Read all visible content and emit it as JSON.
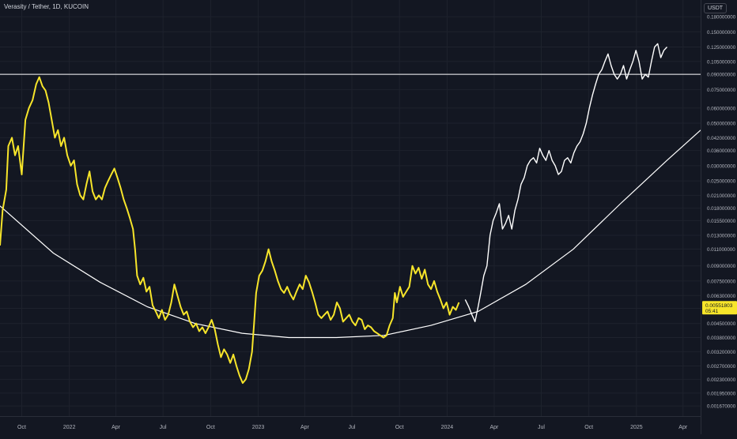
{
  "header": {
    "symbol_title": "Verasity / Tether, 1D, KUCOIN",
    "currency_label": "USDT"
  },
  "colors": {
    "background": "#131722",
    "grid": "#1e222d",
    "axis_text": "#b2b5be",
    "yellow_series": "#f7e52a",
    "white_series": "#ffffff",
    "overlay_line": "#ffffff",
    "price_tag_bg": "#f7e52a",
    "price_tag_text": "#131722"
  },
  "price_tag": {
    "price": "0.00551803",
    "countdown": "05:41"
  },
  "chart_data": {
    "type": "line",
    "y_scale": "log",
    "ylim": [
      0.00155,
      0.2
    ],
    "xlim": [
      "2021-08-20",
      "2025-05-05"
    ],
    "grid": true,
    "y_ticks": [
      "0.180000000",
      "0.150000000",
      "0.125000000",
      "0.105000000",
      "0.090000000",
      "0.075000000",
      "0.060000000",
      "0.050000000",
      "0.042000000",
      "0.036000000",
      "0.030000000",
      "0.025000000",
      "0.021000000",
      "0.018000000",
      "0.015500000",
      "0.013000000",
      "0.011000000",
      "0.009000000",
      "0.007500000",
      "0.006300000",
      "0.005400000",
      "0.004500000",
      "0.003800000",
      "0.003200000",
      "0.002700000",
      "0.002300000",
      "0.001950000",
      "0.001670000"
    ],
    "x_ticks": [
      {
        "label": "Oct",
        "date": "2021-10-01"
      },
      {
        "label": "2022",
        "date": "2022-01-01"
      },
      {
        "label": "Apr",
        "date": "2022-04-01"
      },
      {
        "label": "Jul",
        "date": "2022-07-01"
      },
      {
        "label": "Oct",
        "date": "2022-10-01"
      },
      {
        "label": "2023",
        "date": "2023-01-01"
      },
      {
        "label": "Apr",
        "date": "2023-04-01"
      },
      {
        "label": "Jul",
        "date": "2023-07-01"
      },
      {
        "label": "Oct",
        "date": "2023-10-01"
      },
      {
        "label": "2024",
        "date": "2024-01-01"
      },
      {
        "label": "Apr",
        "date": "2024-04-01"
      },
      {
        "label": "Jul",
        "date": "2024-07-01"
      },
      {
        "label": "Oct",
        "date": "2024-10-01"
      },
      {
        "label": "2025",
        "date": "2025-01-01"
      },
      {
        "label": "Apr",
        "date": "2025-04-01"
      }
    ],
    "series": [
      {
        "color": "#f7e52a",
        "points": [
          [
            "2021-08-20",
            0.0115
          ],
          [
            "2021-08-25",
            0.0175
          ],
          [
            "2021-09-01",
            0.0225
          ],
          [
            "2021-09-05",
            0.038
          ],
          [
            "2021-09-12",
            0.042
          ],
          [
            "2021-09-18",
            0.034
          ],
          [
            "2021-09-24",
            0.038
          ],
          [
            "2021-10-01",
            0.027
          ],
          [
            "2021-10-08",
            0.052
          ],
          [
            "2021-10-15",
            0.06
          ],
          [
            "2021-10-22",
            0.066
          ],
          [
            "2021-10-29",
            0.08
          ],
          [
            "2021-11-04",
            0.087
          ],
          [
            "2021-11-10",
            0.078
          ],
          [
            "2021-11-16",
            0.074
          ],
          [
            "2021-11-22",
            0.064
          ],
          [
            "2021-11-28",
            0.052
          ],
          [
            "2021-12-04",
            0.042
          ],
          [
            "2021-12-10",
            0.046
          ],
          [
            "2021-12-16",
            0.038
          ],
          [
            "2021-12-22",
            0.042
          ],
          [
            "2021-12-28",
            0.034
          ],
          [
            "2022-01-04",
            0.03
          ],
          [
            "2022-01-10",
            0.032
          ],
          [
            "2022-01-16",
            0.024
          ],
          [
            "2022-01-22",
            0.021
          ],
          [
            "2022-01-28",
            0.02
          ],
          [
            "2022-02-03",
            0.024
          ],
          [
            "2022-02-09",
            0.028
          ],
          [
            "2022-02-15",
            0.022
          ],
          [
            "2022-02-21",
            0.02
          ],
          [
            "2022-02-27",
            0.021
          ],
          [
            "2022-03-05",
            0.02
          ],
          [
            "2022-03-11",
            0.023
          ],
          [
            "2022-03-17",
            0.025
          ],
          [
            "2022-03-23",
            0.027
          ],
          [
            "2022-03-29",
            0.029
          ],
          [
            "2022-04-04",
            0.026
          ],
          [
            "2022-04-10",
            0.023
          ],
          [
            "2022-04-16",
            0.02
          ],
          [
            "2022-04-22",
            0.018
          ],
          [
            "2022-04-28",
            0.016
          ],
          [
            "2022-05-04",
            0.014
          ],
          [
            "2022-05-08",
            0.011
          ],
          [
            "2022-05-12",
            0.008
          ],
          [
            "2022-05-18",
            0.0072
          ],
          [
            "2022-05-24",
            0.0078
          ],
          [
            "2022-05-30",
            0.0066
          ],
          [
            "2022-06-05",
            0.007
          ],
          [
            "2022-06-11",
            0.0056
          ],
          [
            "2022-06-17",
            0.0052
          ],
          [
            "2022-06-23",
            0.0048
          ],
          [
            "2022-06-29",
            0.0053
          ],
          [
            "2022-07-05",
            0.0047
          ],
          [
            "2022-07-11",
            0.005
          ],
          [
            "2022-07-17",
            0.0058
          ],
          [
            "2022-07-23",
            0.0072
          ],
          [
            "2022-07-29",
            0.0063
          ],
          [
            "2022-08-04",
            0.0055
          ],
          [
            "2022-08-10",
            0.005
          ],
          [
            "2022-08-16",
            0.0052
          ],
          [
            "2022-08-22",
            0.0046
          ],
          [
            "2022-08-28",
            0.0043
          ],
          [
            "2022-09-03",
            0.0045
          ],
          [
            "2022-09-09",
            0.0041
          ],
          [
            "2022-09-15",
            0.0043
          ],
          [
            "2022-09-21",
            0.004
          ],
          [
            "2022-09-27",
            0.0043
          ],
          [
            "2022-10-03",
            0.0047
          ],
          [
            "2022-10-09",
            0.0042
          ],
          [
            "2022-10-15",
            0.0035
          ],
          [
            "2022-10-21",
            0.003
          ],
          [
            "2022-10-27",
            0.0033
          ],
          [
            "2022-11-02",
            0.0031
          ],
          [
            "2022-11-08",
            0.0028
          ],
          [
            "2022-11-14",
            0.0031
          ],
          [
            "2022-11-20",
            0.0027
          ],
          [
            "2022-11-26",
            0.0024
          ],
          [
            "2022-12-02",
            0.0022
          ],
          [
            "2022-12-08",
            0.0023
          ],
          [
            "2022-12-14",
            0.0026
          ],
          [
            "2022-12-20",
            0.0032
          ],
          [
            "2022-12-24",
            0.0045
          ],
          [
            "2022-12-28",
            0.0065
          ],
          [
            "2023-01-03",
            0.008
          ],
          [
            "2023-01-09",
            0.0085
          ],
          [
            "2023-01-15",
            0.0095
          ],
          [
            "2023-01-21",
            0.011
          ],
          [
            "2023-01-27",
            0.0095
          ],
          [
            "2023-02-02",
            0.0085
          ],
          [
            "2023-02-08",
            0.0075
          ],
          [
            "2023-02-14",
            0.0068
          ],
          [
            "2023-02-20",
            0.0065
          ],
          [
            "2023-02-26",
            0.007
          ],
          [
            "2023-03-04",
            0.0064
          ],
          [
            "2023-03-10",
            0.006
          ],
          [
            "2023-03-16",
            0.0066
          ],
          [
            "2023-03-22",
            0.0072
          ],
          [
            "2023-03-28",
            0.0068
          ],
          [
            "2023-04-03",
            0.008
          ],
          [
            "2023-04-09",
            0.0074
          ],
          [
            "2023-04-15",
            0.0066
          ],
          [
            "2023-04-21",
            0.0058
          ],
          [
            "2023-04-27",
            0.005
          ],
          [
            "2023-05-03",
            0.0048
          ],
          [
            "2023-05-09",
            0.005
          ],
          [
            "2023-05-15",
            0.0052
          ],
          [
            "2023-05-21",
            0.0047
          ],
          [
            "2023-05-27",
            0.005
          ],
          [
            "2023-06-02",
            0.0058
          ],
          [
            "2023-06-08",
            0.0054
          ],
          [
            "2023-06-14",
            0.0046
          ],
          [
            "2023-06-20",
            0.0048
          ],
          [
            "2023-06-26",
            0.005
          ],
          [
            "2023-07-02",
            0.0046
          ],
          [
            "2023-07-08",
            0.0044
          ],
          [
            "2023-07-14",
            0.0048
          ],
          [
            "2023-07-20",
            0.0047
          ],
          [
            "2023-07-26",
            0.0042
          ],
          [
            "2023-08-01",
            0.0044
          ],
          [
            "2023-08-07",
            0.0043
          ],
          [
            "2023-08-13",
            0.0041
          ],
          [
            "2023-08-19",
            0.004
          ],
          [
            "2023-08-25",
            0.0039
          ],
          [
            "2023-08-31",
            0.0038
          ],
          [
            "2023-09-06",
            0.0039
          ],
          [
            "2023-09-12",
            0.0044
          ],
          [
            "2023-09-18",
            0.0048
          ],
          [
            "2023-09-22",
            0.0065
          ],
          [
            "2023-09-26",
            0.0058
          ],
          [
            "2023-10-02",
            0.007
          ],
          [
            "2023-10-08",
            0.0062
          ],
          [
            "2023-10-14",
            0.0066
          ],
          [
            "2023-10-20",
            0.007
          ],
          [
            "2023-10-26",
            0.009
          ],
          [
            "2023-11-01",
            0.0082
          ],
          [
            "2023-11-07",
            0.0088
          ],
          [
            "2023-11-13",
            0.0077
          ],
          [
            "2023-11-19",
            0.0086
          ],
          [
            "2023-11-25",
            0.0072
          ],
          [
            "2023-12-01",
            0.0068
          ],
          [
            "2023-12-07",
            0.0075
          ],
          [
            "2023-12-13",
            0.0066
          ],
          [
            "2023-12-19",
            0.006
          ],
          [
            "2023-12-25",
            0.0054
          ],
          [
            "2023-12-31",
            0.0058
          ],
          [
            "2024-01-06",
            0.005
          ],
          [
            "2024-01-12",
            0.0055
          ],
          [
            "2024-01-18",
            0.0053
          ],
          [
            "2024-01-24",
            0.0058
          ]
        ]
      },
      {
        "color": "#ffffff",
        "points": [
          [
            "2024-02-05",
            0.006
          ],
          [
            "2024-02-12",
            0.0055
          ],
          [
            "2024-02-18",
            0.005
          ],
          [
            "2024-02-24",
            0.0046
          ],
          [
            "2024-03-01",
            0.0055
          ],
          [
            "2024-03-06",
            0.0065
          ],
          [
            "2024-03-12",
            0.008
          ],
          [
            "2024-03-18",
            0.009
          ],
          [
            "2024-03-24",
            0.013
          ],
          [
            "2024-03-30",
            0.0155
          ],
          [
            "2024-04-05",
            0.017
          ],
          [
            "2024-04-11",
            0.019
          ],
          [
            "2024-04-17",
            0.014
          ],
          [
            "2024-04-23",
            0.015
          ],
          [
            "2024-04-29",
            0.0165
          ],
          [
            "2024-05-05",
            0.014
          ],
          [
            "2024-05-11",
            0.0175
          ],
          [
            "2024-05-17",
            0.02
          ],
          [
            "2024-05-23",
            0.024
          ],
          [
            "2024-05-29",
            0.026
          ],
          [
            "2024-06-04",
            0.03
          ],
          [
            "2024-06-10",
            0.032
          ],
          [
            "2024-06-16",
            0.033
          ],
          [
            "2024-06-22",
            0.031
          ],
          [
            "2024-06-28",
            0.037
          ],
          [
            "2024-07-04",
            0.034
          ],
          [
            "2024-07-10",
            0.032
          ],
          [
            "2024-07-16",
            0.036
          ],
          [
            "2024-07-22",
            0.032
          ],
          [
            "2024-07-28",
            0.03
          ],
          [
            "2024-08-03",
            0.027
          ],
          [
            "2024-08-09",
            0.028
          ],
          [
            "2024-08-15",
            0.032
          ],
          [
            "2024-08-21",
            0.033
          ],
          [
            "2024-08-27",
            0.031
          ],
          [
            "2024-09-02",
            0.035
          ],
          [
            "2024-09-08",
            0.038
          ],
          [
            "2024-09-14",
            0.04
          ],
          [
            "2024-09-20",
            0.044
          ],
          [
            "2024-09-26",
            0.05
          ],
          [
            "2024-10-02",
            0.06
          ],
          [
            "2024-10-08",
            0.07
          ],
          [
            "2024-10-14",
            0.08
          ],
          [
            "2024-10-20",
            0.09
          ],
          [
            "2024-10-26",
            0.095
          ],
          [
            "2024-11-01",
            0.105
          ],
          [
            "2024-11-07",
            0.115
          ],
          [
            "2024-11-13",
            0.1
          ],
          [
            "2024-11-19",
            0.09
          ],
          [
            "2024-11-25",
            0.085
          ],
          [
            "2024-12-01",
            0.09
          ],
          [
            "2024-12-07",
            0.1
          ],
          [
            "2024-12-13",
            0.085
          ],
          [
            "2024-12-19",
            0.095
          ],
          [
            "2024-12-25",
            0.105
          ],
          [
            "2024-12-31",
            0.12
          ],
          [
            "2025-01-06",
            0.105
          ],
          [
            "2025-01-12",
            0.085
          ],
          [
            "2025-01-18",
            0.09
          ],
          [
            "2025-01-24",
            0.087
          ],
          [
            "2025-01-30",
            0.105
          ],
          [
            "2025-02-05",
            0.125
          ],
          [
            "2025-02-11",
            0.13
          ],
          [
            "2025-02-17",
            0.11
          ],
          [
            "2025-02-23",
            0.12
          ],
          [
            "2025-03-01",
            0.125
          ]
        ]
      }
    ],
    "overlay": {
      "horizontal_line": 0.09,
      "curve": [
        [
          "2021-08-20",
          0.0185
        ],
        [
          "2021-12-01",
          0.0105
        ],
        [
          "2022-03-01",
          0.0074
        ],
        [
          "2022-06-01",
          0.0055
        ],
        [
          "2022-09-01",
          0.0045
        ],
        [
          "2022-12-01",
          0.004
        ],
        [
          "2023-03-01",
          0.0038
        ],
        [
          "2023-06-01",
          0.0038
        ],
        [
          "2023-09-01",
          0.0039
        ],
        [
          "2023-12-01",
          0.0044
        ],
        [
          "2024-03-01",
          0.0052
        ],
        [
          "2024-06-01",
          0.0072
        ],
        [
          "2024-09-01",
          0.011
        ],
        [
          "2024-12-01",
          0.019
        ],
        [
          "2025-03-01",
          0.032
        ],
        [
          "2025-05-05",
          0.046
        ]
      ]
    }
  }
}
